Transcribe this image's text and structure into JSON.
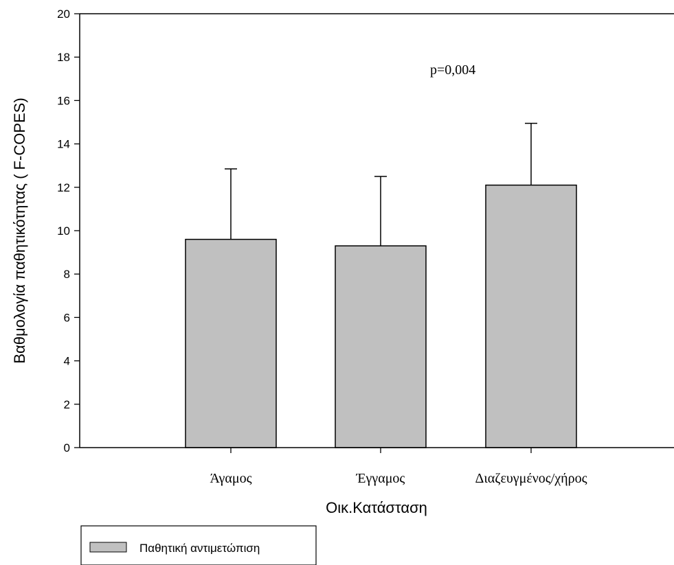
{
  "chart_data": {
    "type": "bar",
    "categories": [
      "Άγαμος",
      "Έγγαμος",
      "Διαζευγμένος/χήρος"
    ],
    "series": [
      {
        "name": "Παθητική αντιμετώπιση",
        "values": [
          9.6,
          9.3,
          12.1
        ],
        "error_upper": [
          12.85,
          12.5,
          14.95
        ]
      }
    ],
    "xlabel": "Οικ.Κατάσταση",
    "ylabel": "Βαθμολογία παθητικότητας ( F-COPES)",
    "ylim": [
      0,
      20
    ],
    "yticks": [
      0,
      2,
      4,
      6,
      8,
      10,
      12,
      14,
      16,
      18,
      20
    ],
    "annotation": "p=0,004",
    "grid": false,
    "legend_position": "bottom-left",
    "bar_color": "#c0c0c0",
    "edge_color": "#000000"
  }
}
